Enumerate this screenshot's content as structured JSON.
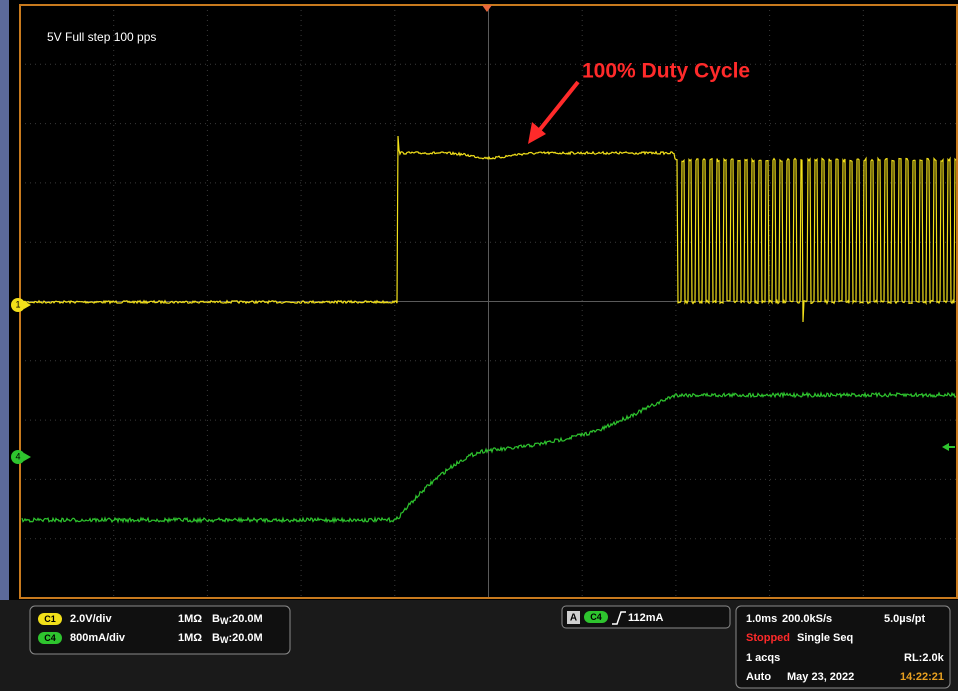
{
  "screen": {
    "label": "5V Full step 100 pps",
    "annotation": "100% Duty Cycle",
    "channel_markers": [
      "1",
      "4"
    ]
  },
  "channels": [
    {
      "badge": "C1",
      "scale": "2.0V/div",
      "impedance": "1MΩ",
      "bw_prefix": "B",
      "bw_sub": "W",
      "bw_value": ":20.0M"
    },
    {
      "badge": "C4",
      "scale": "800mA/div",
      "impedance": "1MΩ",
      "bw_prefix": "B",
      "bw_sub": "W",
      "bw_value": ":20.0M"
    }
  ],
  "trigger": {
    "mode": "A",
    "source": "C4",
    "level": "112mA"
  },
  "acquisition": {
    "timebase": "1.0ms",
    "sample_rate": "200.0kS/s",
    "resolution": "5.0µs/pt",
    "state": "Stopped",
    "sequence": "Single Seq",
    "acqs": "1 acqs",
    "record_length": "RL:2.0k",
    "trigger_mode": "Auto",
    "date": "May 23, 2022",
    "time": "14:22:21"
  }
}
